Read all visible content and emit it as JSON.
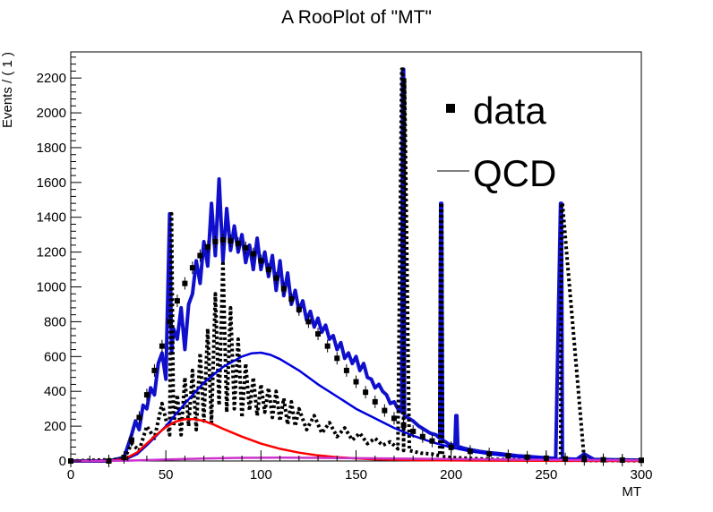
{
  "chart_data": {
    "type": "line",
    "title": "A RooPlot of \"MT\"",
    "xlabel": "MT",
    "ylabel": "Events / ( 1 )",
    "xlim": [
      0,
      300
    ],
    "ylim": [
      0,
      2350
    ],
    "xticks": [
      0,
      50,
      100,
      150,
      200,
      250,
      300
    ],
    "yticks": [
      0,
      200,
      400,
      600,
      800,
      1000,
      1200,
      1400,
      1600,
      1800,
      2000,
      2200
    ],
    "legend": {
      "placement": "top-right",
      "entries": [
        {
          "label": "data",
          "marker": "square"
        },
        {
          "label": "QCD",
          "marker": "line"
        }
      ]
    },
    "series": [
      {
        "name": "data",
        "color": "#000000",
        "style": "points",
        "x": [
          0,
          20,
          28,
          32,
          36,
          40,
          44,
          48,
          52,
          56,
          60,
          64,
          68,
          72,
          76,
          80,
          84,
          88,
          92,
          96,
          100,
          104,
          108,
          112,
          116,
          120,
          125,
          130,
          135,
          140,
          145,
          150,
          155,
          160,
          165,
          170,
          175,
          180,
          185,
          190,
          200,
          210,
          220,
          230,
          240,
          250,
          260,
          270,
          280,
          290,
          300
        ],
        "y": [
          0,
          0,
          20,
          120,
          250,
          380,
          520,
          660,
          800,
          920,
          1020,
          1110,
          1180,
          1230,
          1260,
          1270,
          1265,
          1250,
          1225,
          1190,
          1150,
          1100,
          1050,
          990,
          930,
          870,
          800,
          730,
          660,
          590,
          520,
          455,
          395,
          340,
          290,
          245,
          205,
          170,
          140,
          115,
          78,
          55,
          40,
          30,
          22,
          16,
          12,
          9,
          7,
          5,
          4
        ]
      },
      {
        "name": "",
        "color": "#1010cc",
        "style": "thick-line",
        "x": [
          0,
          20,
          28,
          32,
          34,
          36,
          38,
          40,
          42,
          44,
          46,
          48,
          50,
          52,
          53,
          54,
          56,
          58,
          60,
          62,
          64,
          66,
          68,
          70,
          72,
          74,
          76,
          78,
          80,
          82,
          84,
          86,
          88,
          90,
          92,
          94,
          96,
          98,
          100,
          102,
          104,
          106,
          108,
          110,
          112,
          114,
          116,
          118,
          120,
          122,
          124,
          126,
          128,
          130,
          132,
          134,
          136,
          138,
          140,
          142,
          144,
          146,
          148,
          150,
          152,
          154,
          156,
          158,
          160,
          162,
          164,
          166,
          168,
          170,
          172,
          174,
          174.5,
          175,
          175.5,
          177,
          180,
          183,
          186,
          189,
          192,
          194,
          194.5,
          195,
          195.5,
          197,
          199,
          202,
          202.5,
          203,
          203.5,
          206,
          210,
          215,
          220,
          225,
          230,
          235,
          240,
          245,
          250,
          255,
          257.5,
          258,
          258.5,
          262,
          266,
          270,
          275,
          280,
          285,
          290,
          295,
          300
        ],
        "y": [
          0,
          0,
          20,
          150,
          230,
          180,
          320,
          300,
          420,
          380,
          560,
          620,
          470,
          1420,
          620,
          760,
          700,
          880,
          640,
          900,
          960,
          1150,
          1020,
          1260,
          1120,
          1480,
          1180,
          1620,
          1150,
          1450,
          1210,
          1350,
          1200,
          1300,
          1140,
          1240,
          1100,
          1280,
          1100,
          1200,
          1060,
          1180,
          980,
          1150,
          950,
          1080,
          900,
          980,
          860,
          920,
          810,
          860,
          770,
          820,
          740,
          780,
          700,
          720,
          640,
          680,
          590,
          620,
          560,
          600,
          520,
          560,
          480,
          470,
          420,
          440,
          400,
          380,
          330,
          340,
          300,
          280,
          2250,
          2250,
          260,
          250,
          230,
          200,
          180,
          160,
          150,
          130,
          1480,
          1480,
          120,
          110,
          95,
          90,
          260,
          260,
          85,
          75,
          65,
          55,
          48,
          42,
          36,
          30,
          26,
          22,
          18,
          15,
          1480,
          1480,
          14,
          12,
          10,
          40,
          9,
          8,
          7,
          6,
          5,
          5
        ]
      },
      {
        "name": "QCD",
        "color": "#0000dd",
        "style": "line",
        "x": [
          0,
          20,
          28,
          35,
          40,
          50,
          60,
          70,
          80,
          90,
          95,
          100,
          105,
          110,
          120,
          130,
          140,
          150,
          160,
          170,
          180,
          190,
          200,
          210,
          220,
          230,
          240,
          250,
          260,
          270,
          280,
          290,
          300
        ],
        "y": [
          0,
          0,
          5,
          40,
          90,
          200,
          330,
          450,
          540,
          600,
          618,
          622,
          610,
          585,
          520,
          440,
          370,
          300,
          245,
          190,
          145,
          108,
          78,
          55,
          40,
          28,
          20,
          14,
          10,
          7,
          5,
          4,
          3
        ]
      },
      {
        "name": "",
        "color": "#ff0000",
        "style": "line",
        "x": [
          0,
          20,
          28,
          35,
          40,
          45,
          50,
          55,
          60,
          65,
          70,
          75,
          80,
          90,
          100,
          110,
          120,
          130,
          140,
          150,
          160,
          170,
          180,
          200,
          220,
          250,
          300
        ],
        "y": [
          0,
          0,
          10,
          50,
          100,
          150,
          195,
          225,
          240,
          240,
          230,
          210,
          185,
          140,
          100,
          70,
          48,
          32,
          22,
          15,
          10,
          7,
          5,
          3,
          2,
          1,
          0
        ]
      },
      {
        "name": "",
        "color": "#cc33cc",
        "style": "line",
        "x": [
          0,
          30,
          50,
          70,
          90,
          110,
          130,
          150,
          170,
          200,
          230,
          260,
          300
        ],
        "y": [
          0,
          2,
          8,
          14,
          18,
          19,
          18,
          16,
          14,
          11,
          8,
          6,
          4
        ]
      },
      {
        "name": "",
        "color": "#000000",
        "style": "dashed-thick",
        "x": [
          0,
          28,
          32,
          36,
          40,
          44,
          48,
          52,
          53,
          54,
          56,
          58,
          60,
          62,
          64,
          66,
          68,
          70,
          72,
          74,
          76,
          78,
          80,
          82,
          84,
          86,
          88,
          90,
          92,
          94,
          96,
          98,
          100,
          102,
          104,
          106,
          108,
          110,
          112,
          114,
          116,
          118,
          120,
          124,
          128,
          132,
          136,
          140,
          144,
          148,
          152,
          156,
          160,
          164,
          168,
          172,
          174,
          174.5,
          175,
          175.5,
          178,
          184,
          190,
          194,
          194.5,
          195,
          195.5,
          200,
          210,
          220,
          240,
          257.5,
          258,
          258.5,
          270,
          300
        ],
        "y": [
          0,
          10,
          100,
          60,
          200,
          130,
          330,
          150,
          1420,
          200,
          380,
          150,
          480,
          200,
          520,
          180,
          620,
          230,
          760,
          220,
          960,
          320,
          1150,
          280,
          880,
          300,
          700,
          250,
          560,
          290,
          480,
          260,
          440,
          280,
          420,
          250,
          400,
          230,
          360,
          210,
          340,
          200,
          300,
          180,
          260,
          160,
          220,
          140,
          190,
          120,
          160,
          100,
          130,
          90,
          110,
          70,
          2250,
          2250,
          60,
          2200,
          60,
          45,
          40,
          30,
          1480,
          1480,
          25,
          20,
          15,
          10,
          6,
          4,
          1480,
          1480,
          3,
          2
        ]
      }
    ]
  }
}
